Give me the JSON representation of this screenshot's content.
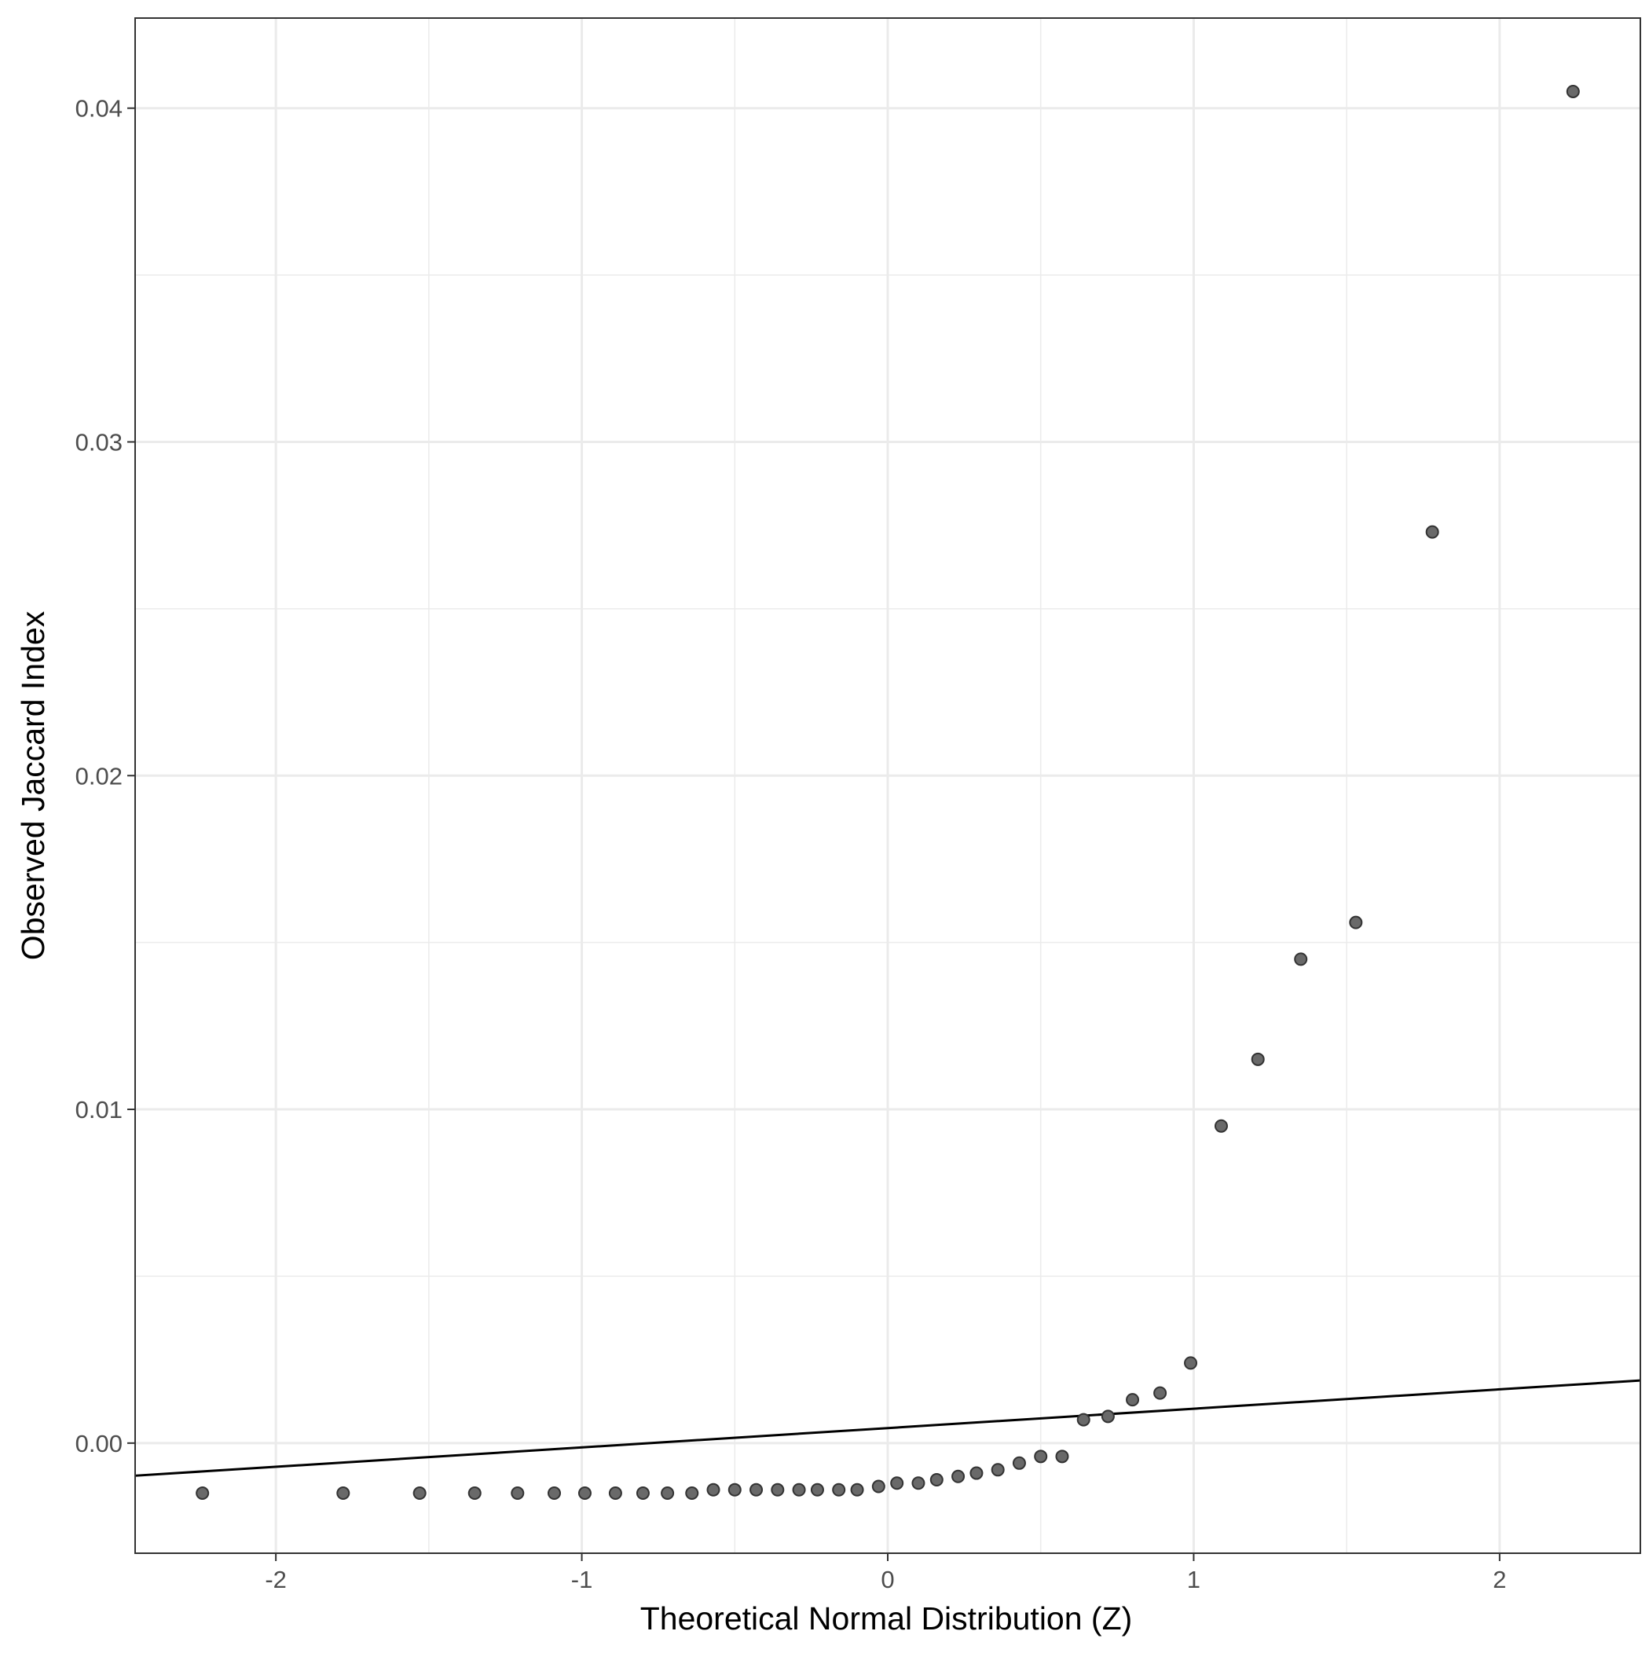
{
  "chart_data": {
    "type": "scatter",
    "title": "",
    "xlabel": "Theoretical Normal Distribution (Z)",
    "ylabel": "Observed Jaccard Index",
    "xlim": [
      -2.46,
      2.46
    ],
    "ylim": [
      -0.0033,
      0.0427
    ],
    "x_ticks": [
      -2,
      -1,
      0,
      1,
      2
    ],
    "x_tick_labels": [
      "-2",
      "-1",
      "0",
      "1",
      "2"
    ],
    "y_ticks": [
      0.0,
      0.01,
      0.02,
      0.03,
      0.04
    ],
    "y_tick_labels": [
      "0.00",
      "0.01",
      "0.02",
      "0.03",
      "0.04"
    ],
    "x_minor": [
      -1.5,
      -0.5,
      0.5,
      1.5
    ],
    "y_minor": [
      0.005,
      0.015,
      0.025,
      0.035
    ],
    "grid": true,
    "legend": "none",
    "point_color": "#696969",
    "line_color": "#000000",
    "reference_line": {
      "intercept": 0.00045,
      "slope": 0.00058
    },
    "series": [
      {
        "x": [
          -2.24,
          -1.78,
          -1.53,
          -1.35,
          -1.21,
          -1.09,
          -0.99,
          -0.89,
          -0.8,
          -0.72,
          -0.64,
          -0.57,
          -0.5,
          -0.43,
          -0.36,
          -0.29,
          -0.23,
          -0.16,
          -0.1,
          -0.03,
          0.03,
          0.1,
          0.16,
          0.23,
          0.29,
          0.36,
          0.43,
          0.5,
          0.57,
          0.64,
          0.72,
          0.8,
          0.89,
          0.99,
          1.09,
          1.21,
          1.35,
          1.53,
          1.78,
          2.24
        ],
        "y": [
          -0.0015,
          -0.0015,
          -0.0015,
          -0.0015,
          -0.0015,
          -0.0015,
          -0.0015,
          -0.0015,
          -0.0015,
          -0.0015,
          -0.0015,
          -0.0014,
          -0.0014,
          -0.0014,
          -0.0014,
          -0.0014,
          -0.0014,
          -0.0014,
          -0.0014,
          -0.0013,
          -0.0012,
          -0.0012,
          -0.0011,
          -0.001,
          -0.0009,
          -0.0008,
          -0.0006,
          -0.0004,
          -0.0004,
          0.0007,
          0.0008,
          0.0013,
          0.0015,
          0.0024,
          0.0095,
          0.0115,
          0.0145,
          0.0156,
          0.0273,
          0.0405
        ]
      }
    ]
  }
}
